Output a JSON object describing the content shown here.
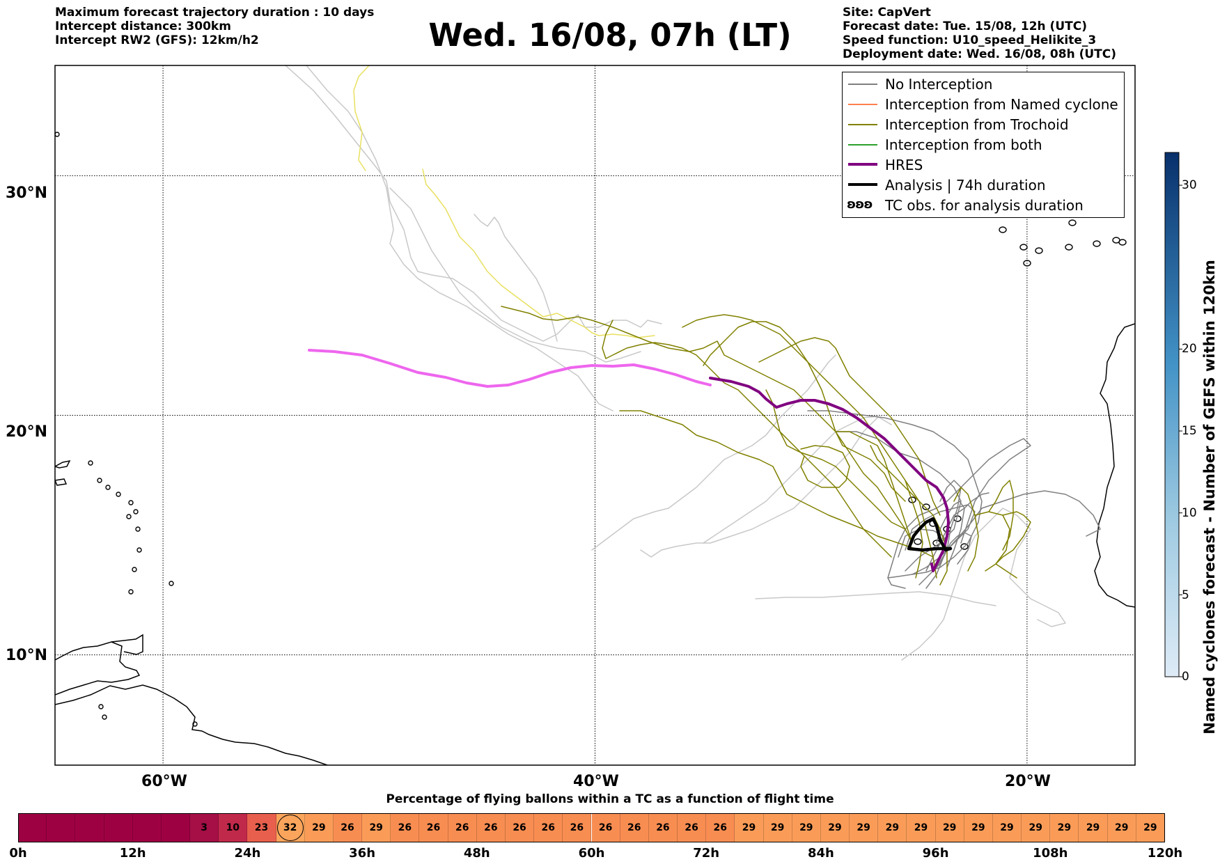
{
  "header": {
    "left_lines": [
      "Maximum forecast trajectory duration : 10 days",
      "Intercept distance: 300km",
      "Intercept RW2 (GFS):  12km/h2"
    ],
    "title": "Wed. 16/08, 07h (LT)",
    "right_lines": [
      "Site: CapVert",
      "Forecast date: Tue. 15/08, 12h (UTC)",
      "Speed function: U10_speed_Helikite_3",
      "Deployment date: Wed. 16/08, 08h (UTC)"
    ]
  },
  "map": {
    "lon_range": [
      -65,
      -15
    ],
    "lat_range": [
      5.4,
      34.6
    ],
    "lon_ticks": [
      {
        "value": -60,
        "label": "60°W"
      },
      {
        "value": -40,
        "label": "40°W"
      },
      {
        "value": -20,
        "label": "20°W"
      }
    ],
    "lat_ticks": [
      {
        "value": 30,
        "label": "30°N"
      },
      {
        "value": 20,
        "label": "20°N"
      },
      {
        "value": 10,
        "label": "10°N"
      }
    ],
    "grid": "dotted",
    "colors": {
      "no_interception": "#7f7f7f",
      "no_interception_light": "#c8c8c8",
      "named_cyclone": "#ff7f50",
      "trochoid": "#808000",
      "trochoid_light": "#e8e060",
      "both": "#2ca02c",
      "hres": "#800080",
      "hres_light": "#ee66ee",
      "analysis": "#000000",
      "coast": "#000000"
    }
  },
  "legend": {
    "items": [
      {
        "label": "No Interception",
        "color": "#7f7f7f",
        "style": "thin"
      },
      {
        "label": "Interception from Named cyclone",
        "color": "#ff7f50",
        "style": "thin"
      },
      {
        "label": "Interception from Trochoid",
        "color": "#808000",
        "style": "thin"
      },
      {
        "label": "Interception from both",
        "color": "#2ca02c",
        "style": "thin"
      },
      {
        "label": "HRES",
        "color": "#800080",
        "style": "thick"
      },
      {
        "label": "Analysis | 74h duration",
        "color": "#000000",
        "style": "thick"
      },
      {
        "label": "TC obs. for analysis duration",
        "color": "#000000",
        "style": "symbol"
      }
    ]
  },
  "colorbar": {
    "label": "Named cyclones forecast - Number of GEFS within 120km",
    "ticks": [
      0,
      5,
      10,
      15,
      20,
      30
    ],
    "range": [
      0,
      32
    ]
  },
  "timeline": {
    "title": "Percentage of flying ballons within a TC as a function of flight time",
    "hour_labels": [
      "0h",
      "12h",
      "24h",
      "36h",
      "48h",
      "60h",
      "72h",
      "84h",
      "96h",
      "108h",
      "120h"
    ],
    "cells": [
      {
        "value": "",
        "color": "#9e0142"
      },
      {
        "value": "",
        "color": "#9e0142"
      },
      {
        "value": "",
        "color": "#9e0142"
      },
      {
        "value": "",
        "color": "#9e0142"
      },
      {
        "value": "",
        "color": "#9e0142"
      },
      {
        "value": "",
        "color": "#9e0142"
      },
      {
        "value": "3",
        "color": "#a50f45"
      },
      {
        "value": "10",
        "color": "#c1294a"
      },
      {
        "value": "23",
        "color": "#e8604d"
      },
      {
        "value": "32",
        "color": "#fba55c",
        "circled": true
      },
      {
        "value": "29",
        "color": "#fa9c58"
      },
      {
        "value": "26",
        "color": "#f88d52"
      },
      {
        "value": "29",
        "color": "#fa9c58"
      },
      {
        "value": "26",
        "color": "#f88d52"
      },
      {
        "value": "26",
        "color": "#f88d52"
      },
      {
        "value": "26",
        "color": "#f88d52"
      },
      {
        "value": "26",
        "color": "#f88d52"
      },
      {
        "value": "26",
        "color": "#f88d52"
      },
      {
        "value": "26",
        "color": "#f88d52"
      },
      {
        "value": "26",
        "color": "#f88d52"
      },
      {
        "value": "26",
        "color": "#f88d52"
      },
      {
        "value": "26",
        "color": "#f88d52"
      },
      {
        "value": "26",
        "color": "#f88d52"
      },
      {
        "value": "26",
        "color": "#f88d52"
      },
      {
        "value": "26",
        "color": "#f88d52"
      },
      {
        "value": "29",
        "color": "#fa9c58"
      },
      {
        "value": "29",
        "color": "#fa9c58"
      },
      {
        "value": "29",
        "color": "#fa9c58"
      },
      {
        "value": "29",
        "color": "#fa9c58"
      },
      {
        "value": "29",
        "color": "#fa9c58"
      },
      {
        "value": "29",
        "color": "#fa9c58"
      },
      {
        "value": "29",
        "color": "#fa9c58"
      },
      {
        "value": "29",
        "color": "#fa9c58"
      },
      {
        "value": "29",
        "color": "#fa9c58"
      },
      {
        "value": "29",
        "color": "#fa9c58"
      },
      {
        "value": "29",
        "color": "#fa9c58"
      },
      {
        "value": "29",
        "color": "#fa9c58"
      },
      {
        "value": "29",
        "color": "#fa9c58"
      },
      {
        "value": "29",
        "color": "#fa9c58"
      },
      {
        "value": "29",
        "color": "#fa9c58"
      }
    ]
  }
}
